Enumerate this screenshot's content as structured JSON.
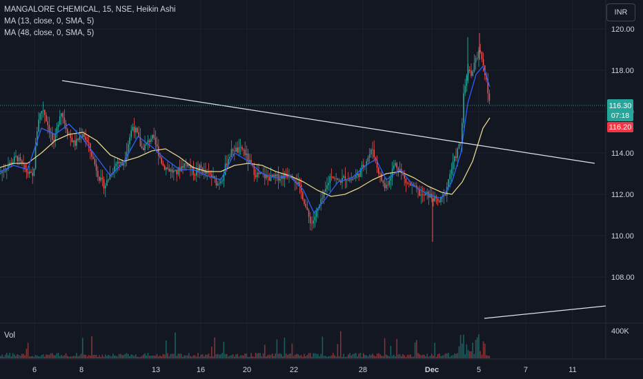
{
  "legend": {
    "title": "MANGALORE CHEMICAL, 15, NSE, Heikin Ashi",
    "ma1": "MA (13, close, 0, SMA, 5)",
    "ma2": "MA (48, close, 0, SMA, 5)"
  },
  "currency": "INR",
  "volume_label": "Vol",
  "colors": {
    "background": "#131722",
    "grid": "#1e222d",
    "up": "#26a69a",
    "down": "#ef5350",
    "ma13": "#2962ff",
    "ma48": "#e8d48b",
    "trendline": "#e0e3eb",
    "text": "#d1d4dc",
    "last_price_bg": "#26a69a",
    "prev_price_bg": "#f23645"
  },
  "chart_data": {
    "type": "candlestick",
    "price_axis": {
      "ticks": [
        "120.00",
        "118.00",
        "116.00",
        "114.00",
        "112.00",
        "110.00",
        "108.00"
      ],
      "range": [
        105.8,
        121.4
      ]
    },
    "volume_axis": {
      "ticks": [
        "400K"
      ]
    },
    "time_axis": {
      "ticks": [
        "6",
        "8",
        "13",
        "16",
        "20",
        "22",
        "28",
        "Dec",
        "5",
        "7",
        "11"
      ]
    },
    "last_price": {
      "value": "116.30",
      "countdown": "07:18"
    },
    "prev_price": {
      "value": "116.20"
    },
    "price_path": [
      [
        0,
        113.0
      ],
      [
        12,
        113.4
      ],
      [
        24,
        113.8
      ],
      [
        36,
        113.2
      ],
      [
        48,
        112.8
      ],
      [
        55,
        115.6
      ],
      [
        62,
        116.2
      ],
      [
        70,
        115.3
      ],
      [
        78,
        114.4
      ],
      [
        88,
        116.1
      ],
      [
        98,
        115.0
      ],
      [
        108,
        114.4
      ],
      [
        120,
        115.0
      ],
      [
        130,
        114.2
      ],
      [
        138,
        113.4
      ],
      [
        145,
        112.7
      ],
      [
        152,
        112.4
      ],
      [
        160,
        113.0
      ],
      [
        170,
        113.6
      ],
      [
        178,
        113.4
      ],
      [
        185,
        114.4
      ],
      [
        192,
        115.3
      ],
      [
        198,
        115.0
      ],
      [
        205,
        114.2
      ],
      [
        212,
        114.4
      ],
      [
        220,
        114.8
      ],
      [
        228,
        114.2
      ],
      [
        236,
        113.4
      ],
      [
        245,
        113.2
      ],
      [
        255,
        113.0
      ],
      [
        264,
        113.4
      ],
      [
        272,
        113.5
      ],
      [
        282,
        113.0
      ],
      [
        290,
        113.3
      ],
      [
        298,
        113.0
      ],
      [
        306,
        112.9
      ],
      [
        315,
        112.5
      ],
      [
        322,
        112.8
      ],
      [
        330,
        113.7
      ],
      [
        338,
        114.2
      ],
      [
        345,
        114.1
      ],
      [
        352,
        114.2
      ],
      [
        362,
        113.5
      ],
      [
        370,
        113.0
      ],
      [
        380,
        112.9
      ],
      [
        390,
        112.8
      ],
      [
        400,
        112.8
      ],
      [
        412,
        112.9
      ],
      [
        422,
        113.0
      ],
      [
        432,
        112.5
      ],
      [
        440,
        111.8
      ],
      [
        446,
        111.0
      ],
      [
        452,
        110.6
      ],
      [
        460,
        111.2
      ],
      [
        470,
        112.0
      ],
      [
        480,
        113.0
      ],
      [
        490,
        112.6
      ],
      [
        500,
        112.8
      ],
      [
        510,
        112.7
      ],
      [
        520,
        113.0
      ],
      [
        530,
        113.6
      ],
      [
        540,
        114.2
      ],
      [
        546,
        113.4
      ],
      [
        552,
        112.8
      ],
      [
        558,
        112.3
      ],
      [
        565,
        112.8
      ],
      [
        572,
        113.5
      ],
      [
        580,
        113.2
      ],
      [
        588,
        112.6
      ],
      [
        596,
        112.4
      ],
      [
        604,
        112.2
      ],
      [
        612,
        111.9
      ],
      [
        620,
        112.0
      ],
      [
        628,
        111.8
      ],
      [
        636,
        111.6
      ],
      [
        645,
        112.0
      ],
      [
        652,
        113.0
      ],
      [
        660,
        113.8
      ],
      [
        668,
        114.6
      ],
      [
        672,
        116.8
      ],
      [
        678,
        118.0
      ],
      [
        684,
        117.8
      ],
      [
        690,
        118.6
      ],
      [
        695,
        118.9
      ],
      [
        700,
        118.2
      ],
      [
        705,
        117.6
      ],
      [
        710,
        116.3
      ]
    ],
    "ma13_path": [
      [
        0,
        113.1
      ],
      [
        20,
        113.4
      ],
      [
        40,
        113.2
      ],
      [
        60,
        115.2
      ],
      [
        80,
        114.9
      ],
      [
        100,
        115.4
      ],
      [
        120,
        114.7
      ],
      [
        140,
        113.8
      ],
      [
        160,
        112.9
      ],
      [
        180,
        113.6
      ],
      [
        200,
        114.8
      ],
      [
        220,
        114.3
      ],
      [
        240,
        113.7
      ],
      [
        260,
        113.2
      ],
      [
        280,
        113.2
      ],
      [
        300,
        112.9
      ],
      [
        320,
        112.7
      ],
      [
        340,
        114.0
      ],
      [
        360,
        113.6
      ],
      [
        380,
        113.0
      ],
      [
        400,
        112.8
      ],
      [
        420,
        112.9
      ],
      [
        440,
        112.2
      ],
      [
        455,
        111.1
      ],
      [
        470,
        111.7
      ],
      [
        490,
        112.6
      ],
      [
        510,
        112.8
      ],
      [
        530,
        113.4
      ],
      [
        545,
        113.7
      ],
      [
        560,
        112.7
      ],
      [
        580,
        113.2
      ],
      [
        600,
        112.4
      ],
      [
        620,
        112.0
      ],
      [
        640,
        111.8
      ],
      [
        655,
        112.6
      ],
      [
        668,
        114.0
      ],
      [
        678,
        116.4
      ],
      [
        690,
        117.8
      ],
      [
        700,
        118.2
      ],
      [
        710,
        117.2
      ]
    ],
    "ma48_path": [
      [
        0,
        113.3
      ],
      [
        20,
        113.5
      ],
      [
        40,
        113.5
      ],
      [
        60,
        114.0
      ],
      [
        80,
        114.6
      ],
      [
        100,
        114.9
      ],
      [
        120,
        115.0
      ],
      [
        140,
        114.6
      ],
      [
        160,
        113.9
      ],
      [
        180,
        113.6
      ],
      [
        200,
        113.8
      ],
      [
        220,
        114.1
      ],
      [
        240,
        114.2
      ],
      [
        260,
        113.8
      ],
      [
        280,
        113.3
      ],
      [
        300,
        113.1
      ],
      [
        320,
        113.1
      ],
      [
        340,
        113.4
      ],
      [
        360,
        113.5
      ],
      [
        380,
        113.4
      ],
      [
        400,
        113.1
      ],
      [
        420,
        112.9
      ],
      [
        440,
        112.6
      ],
      [
        460,
        112.2
      ],
      [
        480,
        111.9
      ],
      [
        500,
        112.0
      ],
      [
        520,
        112.3
      ],
      [
        540,
        112.7
      ],
      [
        560,
        113.0
      ],
      [
        580,
        113.1
      ],
      [
        600,
        112.8
      ],
      [
        620,
        112.4
      ],
      [
        640,
        112.1
      ],
      [
        655,
        112.0
      ],
      [
        670,
        112.6
      ],
      [
        685,
        113.6
      ],
      [
        700,
        115.2
      ],
      [
        710,
        115.7
      ]
    ],
    "trendlines": [
      {
        "from": [
          90,
          117.5
        ],
        "to": [
          862,
          113.5
        ]
      },
      {
        "from": [
          702,
          106.0
        ],
        "to": [
          878,
          106.6
        ]
      }
    ]
  }
}
